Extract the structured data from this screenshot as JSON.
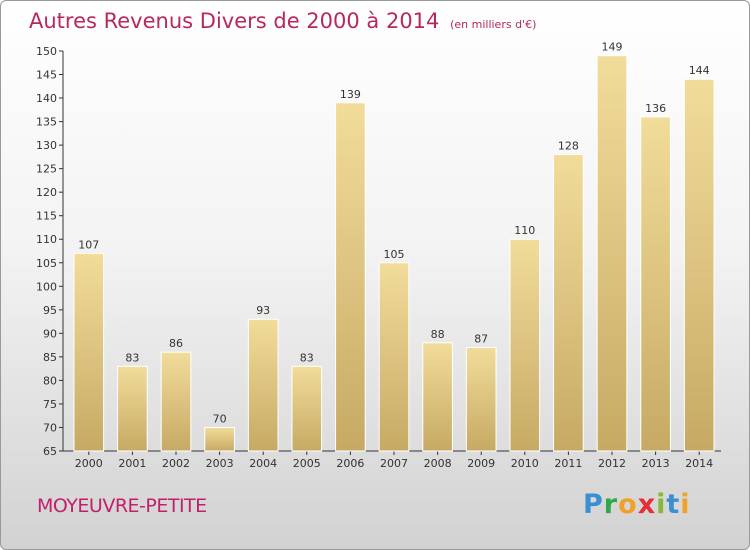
{
  "title": "Autres Revenus Divers de 2000 à 2014",
  "unit": "(en milliers d'€)",
  "commune": "MOYEUVRE-PETITE",
  "logo": {
    "p": "P",
    "r": "r",
    "o": "o",
    "x": "x",
    "i": "i",
    "t": "t",
    "i2": "i"
  },
  "colors": {
    "title": "#b8285e",
    "bar_light": "#f2dc9a",
    "bar_dark": "#c6aa64"
  },
  "chart_data": {
    "type": "bar",
    "title": "Autres Revenus Divers de 2000 à 2014",
    "subtitle": "(en milliers d'€)",
    "categories": [
      "2000",
      "2001",
      "2002",
      "2003",
      "2004",
      "2005",
      "2006",
      "2007",
      "2008",
      "2009",
      "2010",
      "2011",
      "2012",
      "2013",
      "2014"
    ],
    "values": [
      107,
      83,
      86,
      70,
      93,
      83,
      139,
      105,
      88,
      87,
      110,
      128,
      149,
      136,
      144
    ],
    "ylim": [
      65,
      150
    ],
    "yticks": [
      65,
      70,
      75,
      80,
      85,
      90,
      95,
      100,
      105,
      110,
      115,
      120,
      125,
      130,
      135,
      140,
      145,
      150
    ],
    "grid": false,
    "xlabel": "",
    "ylabel": ""
  }
}
